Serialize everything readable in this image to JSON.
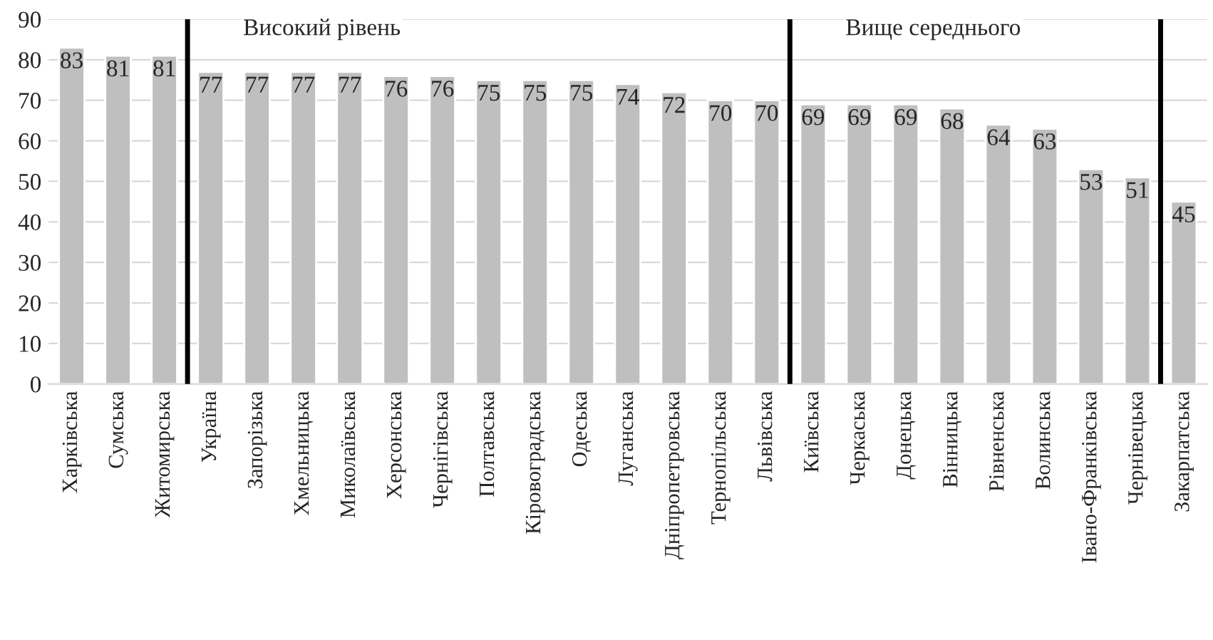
{
  "chart_data": {
    "type": "bar",
    "categories": [
      "Харківська",
      "Сумська",
      "Житомирська",
      "Україна",
      "Запорізька",
      "Хмельницька",
      "Миколаївська",
      "Херсонська",
      "Чернігівська",
      "Полтавська",
      "Кіровоградська",
      "Одеська",
      "Луганська",
      "Дніпропетровська",
      "Тернопільська",
      "Львівська",
      "Київська",
      "Черкаська",
      "Донецька",
      "Вінницька",
      "Рівненська",
      "Волинська",
      "Івано-Франківська",
      "Чернівецька",
      "Закарпатська"
    ],
    "values": [
      83,
      81,
      81,
      77,
      77,
      77,
      77,
      76,
      76,
      75,
      75,
      75,
      74,
      72,
      70,
      70,
      69,
      69,
      69,
      68,
      64,
      63,
      53,
      51,
      45
    ],
    "color": "#bfbfbf",
    "data_labels": true,
    "ylim": [
      0,
      90
    ],
    "yticks": [
      0,
      10,
      20,
      30,
      40,
      50,
      60,
      70,
      80,
      90
    ],
    "grid": "y",
    "legend": false,
    "annotations": [
      "Високий рівень",
      "Вище середнього"
    ]
  }
}
